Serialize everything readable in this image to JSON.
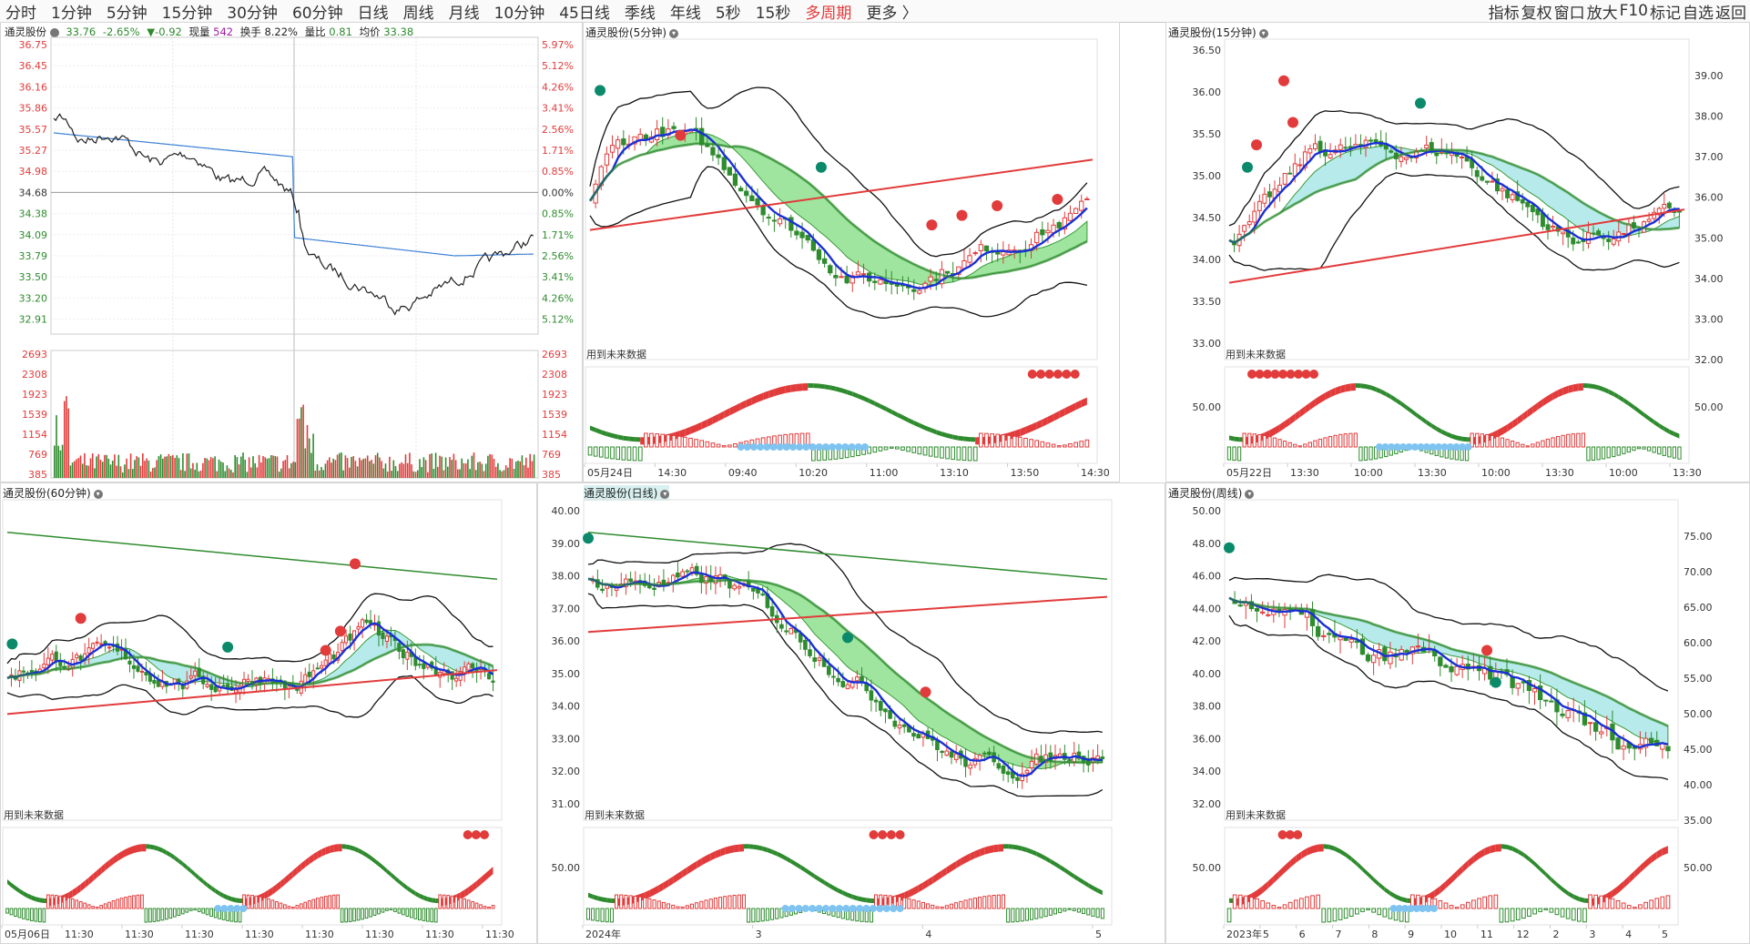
{
  "toolbar": {
    "periods": [
      "分时",
      "1分钟",
      "5分钟",
      "15分钟",
      "30分钟",
      "60分钟",
      "日线",
      "周线",
      "月线",
      "10分钟",
      "45日线",
      "季线",
      "年线",
      "5秒",
      "15秒"
    ],
    "multi": "多周期",
    "more": "更多",
    "more_arrow": "〉",
    "right_items": [
      "指标",
      "复权",
      "窗口",
      "放大",
      "F10",
      "标记",
      "自选",
      "返回"
    ]
  },
  "intraday": {
    "stock": "通灵股份",
    "price": "33.76",
    "change_pct": "-2.65%",
    "change": "▼-0.92",
    "volume_label": "现量",
    "volume": "542",
    "turnover_label": "换手",
    "turnover": "8.22%",
    "ratio_label": "量比",
    "ratio": "0.81",
    "avg_label": "均价",
    "avg": "33.38",
    "price_ticks": [
      "36.75",
      "36.45",
      "36.16",
      "35.86",
      "35.57",
      "35.27",
      "34.98",
      "34.68",
      "34.38",
      "34.09",
      "33.79",
      "33.50",
      "33.20",
      "32.91"
    ],
    "pct_ticks": [
      "5.97%",
      "5.12%",
      "4.26%",
      "3.41%",
      "2.56%",
      "1.71%",
      "0.85%",
      "0.00%",
      "0.85%",
      "1.71%",
      "2.56%",
      "3.41%",
      "4.26%",
      "5.12%"
    ],
    "vol_ticks": [
      "2693",
      "2308",
      "1923",
      "1539",
      "1154",
      "769",
      "385"
    ],
    "colors": {
      "up": "#e23b3b",
      "down": "#2e8b2e",
      "price_line": "#222222",
      "avg_line": "#3a7fd5"
    }
  },
  "panels": {
    "p5": {
      "title": "通灵股份(5分钟)",
      "future": "用到未来数据",
      "y_ticks": [],
      "x_labels": [
        "05月24日",
        "14:30",
        "09:40",
        "10:20",
        "11:00",
        "13:10",
        "13:50",
        "14:30"
      ]
    },
    "p15": {
      "title": "通灵股份(15分钟)",
      "future": "用到未来数据",
      "y_left": [
        "36.50",
        "36.00",
        "35.50",
        "35.00",
        "34.50",
        "34.00",
        "33.50",
        "33.00"
      ],
      "y_right": [
        "39.00",
        "38.00",
        "37.00",
        "36.00",
        "35.00",
        "34.00",
        "33.00",
        "32.00"
      ],
      "sub_left": "50.00",
      "sub_right": "50.00",
      "x_labels": [
        "05月22日",
        "13:30",
        "10:00",
        "13:30",
        "10:00",
        "13:30",
        "10:00",
        "13:30"
      ]
    },
    "p60": {
      "title": "通灵股份(60分钟)",
      "future": "用到未来数据",
      "x_labels": [
        "05月06日",
        "11:30",
        "11:30",
        "11:30",
        "11:30",
        "11:30",
        "11:30",
        "11:30",
        "11:30"
      ]
    },
    "pday": {
      "title": "通灵股份(日线)",
      "future": "用到未来数据",
      "y_left": [
        "40.00",
        "39.00",
        "38.00",
        "37.00",
        "36.00",
        "35.00",
        "34.00",
        "33.00",
        "32.00",
        "31.00"
      ],
      "sub_left": "50.00",
      "x_labels": [
        "2024年",
        "3",
        "4",
        "5"
      ]
    },
    "pweek": {
      "title": "通灵股份(周线)",
      "future": "用到未来数据",
      "y_left": [
        "50.00",
        "48.00",
        "46.00",
        "44.00",
        "42.00",
        "40.00",
        "38.00",
        "36.00",
        "34.00",
        "32.00"
      ],
      "y_right": [
        "75.00",
        "70.00",
        "65.00",
        "60.00",
        "55.00",
        "50.00",
        "45.00",
        "40.00",
        "35.00"
      ],
      "sub_left": "50.00",
      "sub_right": "50.00",
      "x_labels": [
        "2023年",
        "5",
        "6",
        "7",
        "8",
        "9",
        "10",
        "11",
        "12",
        "2",
        "3",
        "4",
        "5"
      ]
    }
  }
}
